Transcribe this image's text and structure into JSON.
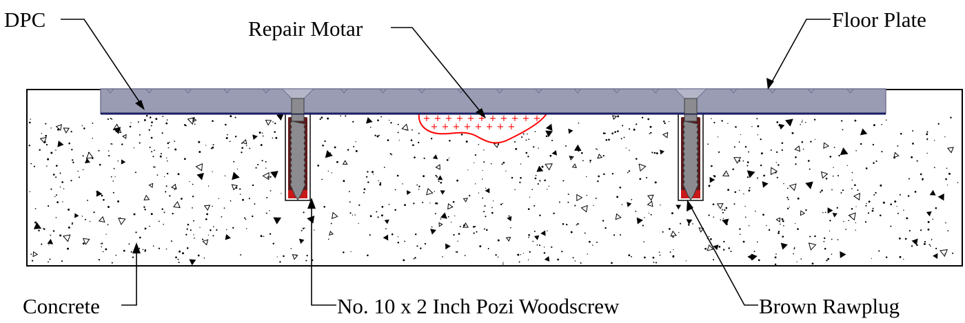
{
  "labels": {
    "dpc": "DPC",
    "repair_mortar": "Repair Motar",
    "floor_plate": "Floor Plate",
    "concrete": "Concrete",
    "woodscrew": "No. 10 x 2 Inch Pozi Woodscrew",
    "rawplug": "Brown Rawplug"
  },
  "colors": {
    "concrete_fill": "#ffffff",
    "concrete_speckle": "#000000",
    "floor_plate": "#9a9cb4",
    "floor_plate_edge": "#6f7190",
    "dpc_line": "#1b1d63",
    "repair_mortar_outline": "#ff0000",
    "repair_mortar_mark": "#ff0000",
    "screw_metal": "#8c8c90",
    "screw_dark": "#3a3a3c",
    "rawplug": "#5e1a1a",
    "plug_tip": "#c81818"
  }
}
